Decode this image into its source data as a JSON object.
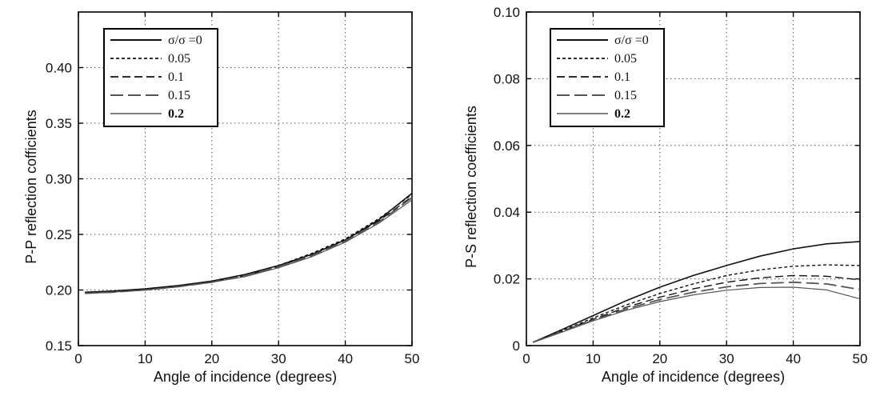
{
  "chart_data": [
    {
      "type": "line",
      "title": "",
      "xlabel": "Angle of incidence (degrees)",
      "ylabel": "P-P reflection cofficients",
      "xlim": [
        0,
        50
      ],
      "ylim": [
        0.15,
        0.45
      ],
      "xticks": [
        "0",
        "10",
        "20",
        "30",
        "40",
        "50"
      ],
      "yticks": [
        "0.15",
        "0.20",
        "0.25",
        "0.30",
        "0.35",
        "0.40"
      ],
      "grid": true,
      "legend_position": "top-left",
      "x": [
        1,
        5,
        10,
        15,
        20,
        25,
        30,
        35,
        40,
        45,
        50
      ],
      "series": [
        {
          "name": "σ/σ =0",
          "values": [
            0.198,
            0.199,
            0.201,
            0.204,
            0.208,
            0.214,
            0.222,
            0.232,
            0.245,
            0.263,
            0.287
          ]
        },
        {
          "name": "0.05",
          "values": [
            0.198,
            0.199,
            0.201,
            0.204,
            0.208,
            0.214,
            0.222,
            0.233,
            0.246,
            0.264,
            0.286
          ]
        },
        {
          "name": "0.1",
          "values": [
            0.197,
            0.198,
            0.2,
            0.203,
            0.207,
            0.213,
            0.221,
            0.232,
            0.245,
            0.262,
            0.284
          ]
        },
        {
          "name": "0.15",
          "values": [
            0.197,
            0.198,
            0.2,
            0.203,
            0.207,
            0.213,
            0.221,
            0.231,
            0.244,
            0.261,
            0.283
          ]
        },
        {
          "name": "0.2",
          "values": [
            0.197,
            0.198,
            0.2,
            0.203,
            0.207,
            0.212,
            0.22,
            0.23,
            0.243,
            0.26,
            0.281
          ]
        }
      ]
    },
    {
      "type": "line",
      "title": "",
      "xlabel": "Angle of incidence (degrees)",
      "ylabel": "P-S reflection coefficients",
      "xlim": [
        0,
        50
      ],
      "ylim": [
        0,
        0.1
      ],
      "xticks": [
        "0",
        "10",
        "20",
        "30",
        "40",
        "50"
      ],
      "yticks": [
        "0",
        "0.02",
        "0.04",
        "0.06",
        "0.08",
        "0.10"
      ],
      "grid": true,
      "legend_position": "top-left",
      "x": [
        1,
        5,
        10,
        15,
        20,
        25,
        30,
        35,
        40,
        45,
        50
      ],
      "series": [
        {
          "name": "σ/σ =0",
          "values": [
            0.001,
            0.0045,
            0.009,
            0.0135,
            0.0175,
            0.021,
            0.024,
            0.0268,
            0.029,
            0.0305,
            0.0312
          ]
        },
        {
          "name": "0.05",
          "values": [
            0.001,
            0.0042,
            0.0083,
            0.0122,
            0.0156,
            0.0185,
            0.021,
            0.0227,
            0.0238,
            0.0242,
            0.024
          ]
        },
        {
          "name": "0.1",
          "values": [
            0.001,
            0.004,
            0.0079,
            0.0115,
            0.0145,
            0.017,
            0.019,
            0.0203,
            0.021,
            0.0208,
            0.0197
          ]
        },
        {
          "name": "0.15",
          "values": [
            0.001,
            0.0039,
            0.0076,
            0.011,
            0.0138,
            0.016,
            0.0176,
            0.0186,
            0.019,
            0.0185,
            0.0168
          ]
        },
        {
          "name": "0.2",
          "values": [
            0.001,
            0.0038,
            0.0074,
            0.0106,
            0.0132,
            0.0152,
            0.0166,
            0.0174,
            0.0175,
            0.0167,
            0.014
          ]
        }
      ]
    }
  ],
  "series_styles": [
    {
      "dash": "",
      "color": "#111111",
      "width": 1.6
    },
    {
      "dash": "4 3",
      "color": "#111111",
      "width": 1.4
    },
    {
      "dash": "10 5",
      "color": "#111111",
      "width": 1.4
    },
    {
      "dash": "16 6",
      "color": "#555555",
      "width": 1.8
    },
    {
      "dash": "",
      "color": "#555555",
      "width": 1.2
    }
  ]
}
